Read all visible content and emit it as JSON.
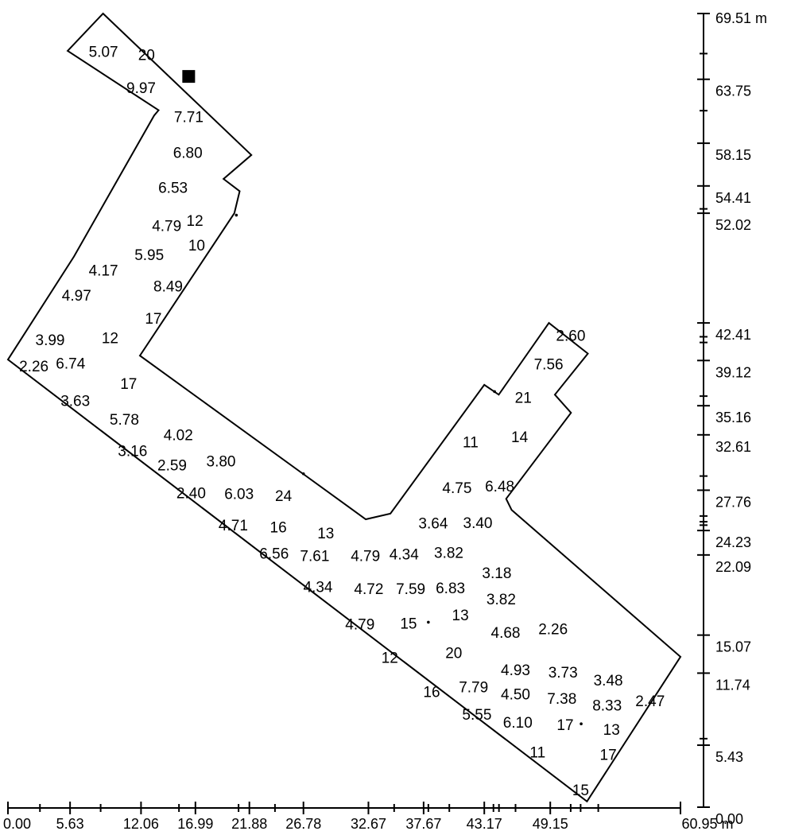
{
  "x_axis": {
    "unit": "m",
    "labels": [
      {
        "text": "0.00",
        "value": 0.0
      },
      {
        "text": "5.63",
        "value": 5.63
      },
      {
        "text": "12.06",
        "value": 12.06
      },
      {
        "text": "16.99",
        "value": 16.99
      },
      {
        "text": "21.88",
        "value": 21.88
      },
      {
        "text": "26.78",
        "value": 26.78
      },
      {
        "text": "32.67",
        "value": 32.67
      },
      {
        "text": "37.67",
        "value": 37.67
      },
      {
        "text": "43.17",
        "value": 43.17
      },
      {
        "text": "49.15",
        "value": 49.15
      },
      {
        "text": "60.95 m",
        "value": 60.95
      }
    ]
  },
  "y_axis": {
    "unit": "m",
    "labels": [
      {
        "text": "69.51 m",
        "value": 69.51
      },
      {
        "text": "63.75",
        "value": 63.75
      },
      {
        "text": "58.15",
        "value": 58.15
      },
      {
        "text": "54.41",
        "value": 54.41
      },
      {
        "text": "52.02",
        "value": 52.02
      },
      {
        "text": "42.41",
        "value": 42.41
      },
      {
        "text": "39.12",
        "value": 39.12
      },
      {
        "text": "35.16",
        "value": 35.16
      },
      {
        "text": "32.61",
        "value": 32.61
      },
      {
        "text": "27.76",
        "value": 27.76
      },
      {
        "text": "24.23",
        "value": 24.23
      },
      {
        "text": "22.09",
        "value": 22.09
      },
      {
        "text": "15.07",
        "value": 15.07
      },
      {
        "text": "11.74",
        "value": 11.74
      },
      {
        "text": "5.43",
        "value": 5.43
      },
      {
        "text": "0.00",
        "value": 0.0
      }
    ]
  },
  "outline_points": [
    [
      8.62,
      69.51
    ],
    [
      22.06,
      57.12
    ],
    [
      19.54,
      55.02
    ],
    [
      21.0,
      53.95
    ],
    [
      20.52,
      52.02
    ],
    [
      11.96,
      39.55
    ],
    [
      32.43,
      25.21
    ],
    [
      34.66,
      25.71
    ],
    [
      43.17,
      36.99
    ],
    [
      44.48,
      36.13
    ],
    [
      49.03,
      42.41
    ],
    [
      52.56,
      39.73
    ],
    [
      49.57,
      36.13
    ],
    [
      51.03,
      34.54
    ],
    [
      45.15,
      27.01
    ],
    [
      45.65,
      26.03
    ],
    [
      60.95,
      13.17
    ],
    [
      52.48,
      0.5
    ],
    [
      0.0,
      39.2
    ],
    [
      5.99,
      48.23
    ],
    [
      13.25,
      60.58
    ],
    [
      13.65,
      61.04
    ],
    [
      5.41,
      66.24
    ]
  ],
  "station_marker": {
    "x": 16.38,
    "y": 64.0
  },
  "dots": [
    {
      "x": 26.78,
      "y": 29.2
    },
    {
      "x": 44.1,
      "y": 36.4
    },
    {
      "x": 38.1,
      "y": 16.2
    },
    {
      "x": 51.95,
      "y": 7.3
    },
    {
      "x": 20.7,
      "y": 51.85
    }
  ],
  "values": [
    {
      "text": "5.07",
      "x": 8.65,
      "y": 66.05
    },
    {
      "text": "20",
      "x": 12.56,
      "y": 65.8
    },
    {
      "text": "9.97",
      "x": 12.07,
      "y": 62.9
    },
    {
      "text": "7.71",
      "x": 16.38,
      "y": 60.34
    },
    {
      "text": "6.80",
      "x": 16.3,
      "y": 57.22
    },
    {
      "text": "6.53",
      "x": 14.96,
      "y": 54.15
    },
    {
      "text": "4.79",
      "x": 14.39,
      "y": 50.8
    },
    {
      "text": "12",
      "x": 16.94,
      "y": 51.25
    },
    {
      "text": "5.95",
      "x": 12.8,
      "y": 48.25
    },
    {
      "text": "10",
      "x": 17.1,
      "y": 49.1
    },
    {
      "text": "4.17",
      "x": 8.65,
      "y": 46.9
    },
    {
      "text": "8.49",
      "x": 14.52,
      "y": 45.53
    },
    {
      "text": "4.97",
      "x": 6.22,
      "y": 44.7
    },
    {
      "text": "17",
      "x": 13.18,
      "y": 42.7
    },
    {
      "text": "3.99",
      "x": 3.82,
      "y": 40.8
    },
    {
      "text": "12",
      "x": 9.25,
      "y": 41.0
    },
    {
      "text": "2.26",
      "x": 2.35,
      "y": 38.5
    },
    {
      "text": "6.74",
      "x": 5.68,
      "y": 38.75
    },
    {
      "text": "17",
      "x": 10.94,
      "y": 37.0
    },
    {
      "text": "3.63",
      "x": 6.1,
      "y": 35.5
    },
    {
      "text": "5.78",
      "x": 10.55,
      "y": 33.85
    },
    {
      "text": "4.02",
      "x": 15.44,
      "y": 32.48
    },
    {
      "text": "3.16",
      "x": 11.3,
      "y": 31.1
    },
    {
      "text": "2.59",
      "x": 14.88,
      "y": 29.85
    },
    {
      "text": "3.80",
      "x": 19.31,
      "y": 30.2
    },
    {
      "text": "2.40",
      "x": 16.6,
      "y": 27.4
    },
    {
      "text": "6.03",
      "x": 20.94,
      "y": 27.35
    },
    {
      "text": "24",
      "x": 24.97,
      "y": 27.15
    },
    {
      "text": "4.71",
      "x": 20.42,
      "y": 24.6
    },
    {
      "text": "16",
      "x": 24.5,
      "y": 24.4
    },
    {
      "text": "13",
      "x": 28.8,
      "y": 23.88
    },
    {
      "text": "3.64",
      "x": 38.54,
      "y": 24.75
    },
    {
      "text": "3.40",
      "x": 42.58,
      "y": 24.8
    },
    {
      "text": "4.75",
      "x": 40.7,
      "y": 27.85
    },
    {
      "text": "6.48",
      "x": 44.57,
      "y": 28.0
    },
    {
      "text": "11",
      "x": 41.92,
      "y": 31.85
    },
    {
      "text": "14",
      "x": 46.37,
      "y": 32.3
    },
    {
      "text": "21",
      "x": 46.7,
      "y": 35.75
    },
    {
      "text": "7.56",
      "x": 49.0,
      "y": 38.7
    },
    {
      "text": "2.60",
      "x": 51.0,
      "y": 41.2
    },
    {
      "text": "6.56",
      "x": 24.12,
      "y": 22.1
    },
    {
      "text": "7.61",
      "x": 27.8,
      "y": 21.9
    },
    {
      "text": "4.79",
      "x": 32.4,
      "y": 21.9
    },
    {
      "text": "4.34",
      "x": 35.9,
      "y": 22.05
    },
    {
      "text": "3.82",
      "x": 39.95,
      "y": 22.2
    },
    {
      "text": "3.18",
      "x": 44.3,
      "y": 20.4
    },
    {
      "text": "4.34",
      "x": 28.1,
      "y": 19.2
    },
    {
      "text": "4.72",
      "x": 32.7,
      "y": 19.0
    },
    {
      "text": "7.59",
      "x": 36.5,
      "y": 19.0
    },
    {
      "text": "6.83",
      "x": 40.1,
      "y": 19.1
    },
    {
      "text": "3.82",
      "x": 44.7,
      "y": 18.1
    },
    {
      "text": "4.79",
      "x": 31.9,
      "y": 15.9
    },
    {
      "text": "15",
      "x": 36.3,
      "y": 16.0
    },
    {
      "text": "13",
      "x": 41.0,
      "y": 16.7
    },
    {
      "text": "4.68",
      "x": 45.1,
      "y": 15.2
    },
    {
      "text": "2.26",
      "x": 49.4,
      "y": 15.5
    },
    {
      "text": "12",
      "x": 34.6,
      "y": 13.0
    },
    {
      "text": "20",
      "x": 40.4,
      "y": 13.4
    },
    {
      "text": "4.93",
      "x": 46.0,
      "y": 11.9
    },
    {
      "text": "3.73",
      "x": 50.3,
      "y": 11.7
    },
    {
      "text": "3.48",
      "x": 54.4,
      "y": 11.0
    },
    {
      "text": "16",
      "x": 38.4,
      "y": 10.0
    },
    {
      "text": "7.79",
      "x": 42.2,
      "y": 10.4
    },
    {
      "text": "4.50",
      "x": 46.0,
      "y": 9.8
    },
    {
      "text": "7.38",
      "x": 50.2,
      "y": 9.4
    },
    {
      "text": "8.33",
      "x": 54.3,
      "y": 8.8
    },
    {
      "text": "2.47",
      "x": 58.2,
      "y": 9.2
    },
    {
      "text": "5.55",
      "x": 42.5,
      "y": 8.0
    },
    {
      "text": "6.10",
      "x": 46.2,
      "y": 7.3
    },
    {
      "text": "17",
      "x": 50.5,
      "y": 7.1
    },
    {
      "text": "13",
      "x": 54.7,
      "y": 6.7
    },
    {
      "text": "11",
      "x": 48.0,
      "y": 4.7
    },
    {
      "text": "17",
      "x": 54.4,
      "y": 4.5
    },
    {
      "text": "15",
      "x": 51.9,
      "y": 1.4
    }
  ]
}
